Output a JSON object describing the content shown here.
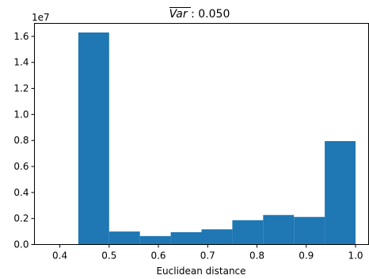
{
  "chart_data": {
    "type": "bar",
    "title_var": "Var",
    "title_rest": " : 0.050",
    "xlabel": "Euclidean distance",
    "ylabel": "",
    "y_multiplier_label": "1e7",
    "bin_edges": [
      0.375,
      0.4375,
      0.5,
      0.5625,
      0.625,
      0.6875,
      0.75,
      0.8125,
      0.875,
      0.9375,
      1.0
    ],
    "values": [
      0.0006,
      1.63,
      0.1,
      0.065,
      0.095,
      0.117,
      0.187,
      0.227,
      0.212,
      0.795
    ],
    "xlim": [
      0.375,
      1.0
    ],
    "ylim": [
      0,
      1.7
    ],
    "xticks": [
      0.4,
      0.5,
      0.6,
      0.7,
      0.8,
      0.9,
      1.0
    ],
    "xtick_labels": [
      "0.4",
      "0.5",
      "0.6",
      "0.7",
      "0.8",
      "0.9",
      "1.0"
    ],
    "yticks": [
      0.0,
      0.2,
      0.4,
      0.6,
      0.8,
      1.0,
      1.2,
      1.4,
      1.6
    ],
    "ytick_labels": [
      "0.0",
      "0.2",
      "0.4",
      "0.6",
      "0.8",
      "1.0",
      "1.2",
      "1.4",
      "1.6"
    ],
    "grid": false,
    "bar_color": "#1f77b4"
  }
}
